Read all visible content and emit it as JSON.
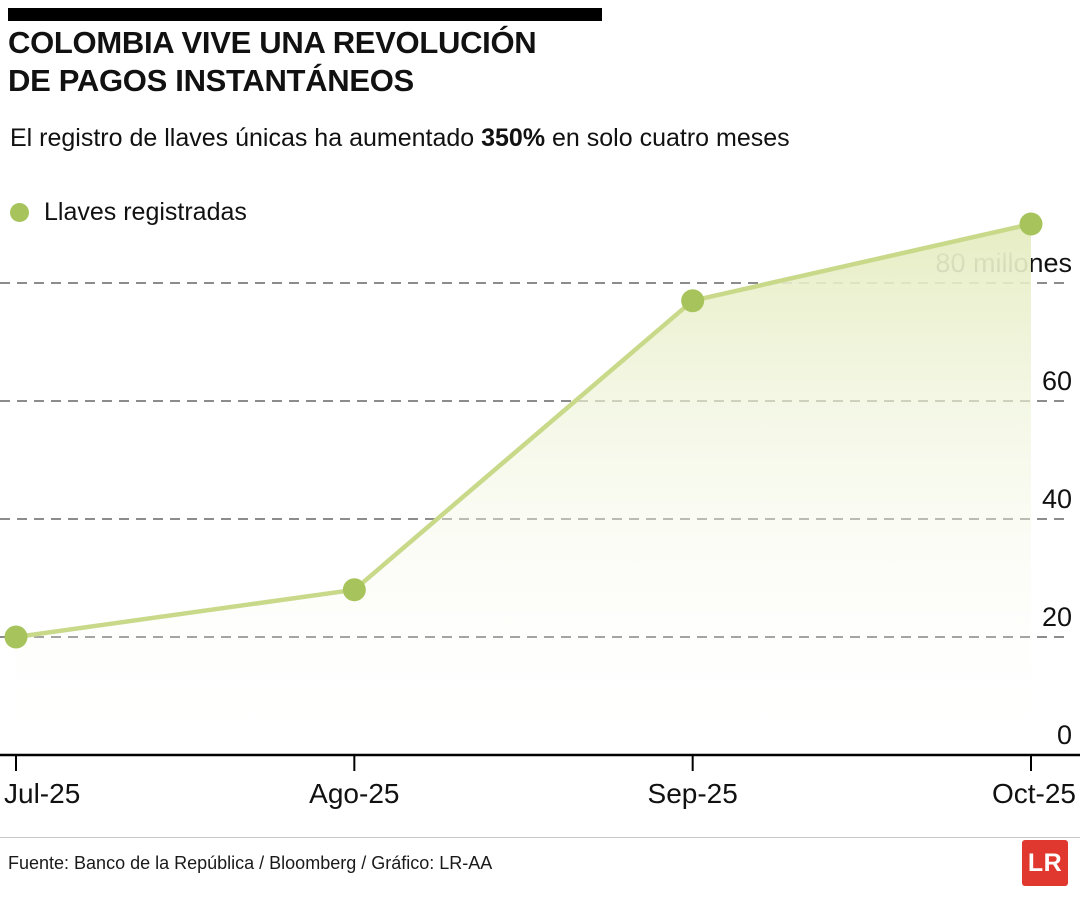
{
  "header": {
    "title_line1": "COLOMBIA VIVE UNA REVOLUCIÓN",
    "title_line2": "DE PAGOS INSTANTÁNEOS",
    "subtitle_prefix": "El registro de llaves únicas ha aumentado ",
    "subtitle_bold": "350%",
    "subtitle_suffix": " en solo cuatro meses"
  },
  "legend": {
    "label": "Llaves registradas",
    "color": "#a7c45c"
  },
  "chart_data": {
    "type": "area",
    "title": "Colombia vive una revolución de pagos instantáneos",
    "series_name": "Llaves registradas",
    "categories": [
      "Jul-25",
      "Ago-25",
      "Sep-25",
      "Oct-25"
    ],
    "values": [
      20,
      28,
      77,
      90
    ],
    "unit": "millones",
    "ylim": [
      0,
      95
    ],
    "yticks": [
      0,
      20,
      40,
      60,
      80
    ],
    "ytick_labels": [
      "0",
      "20",
      "40",
      "60",
      "80 millones"
    ],
    "grid": "dashed-horizontal",
    "legend_position": "top-left",
    "line_color": "#c9d98a",
    "point_color": "#a7c45c",
    "area_top_color": "#e6edc3",
    "grid_color": "#8c8c8c",
    "axis_color": "#000000"
  },
  "footer": {
    "source": "Fuente: Banco de la República / Bloomberg / Gráfico: LR-AA",
    "logo_text": "LR",
    "logo_color": "#e0372e"
  }
}
